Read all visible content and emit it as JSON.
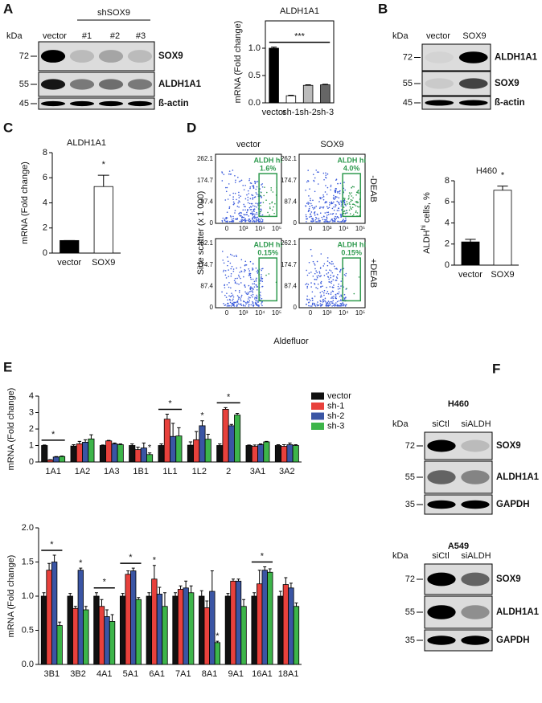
{
  "panel_labels": [
    "A",
    "B",
    "C",
    "D",
    "E",
    "F"
  ],
  "blots": [
    {
      "unit": "kDa",
      "markers": [
        72,
        55,
        45
      ],
      "group_label": "shSOX9",
      "lanes": [
        "vector",
        "#1",
        "#2",
        "#3"
      ],
      "proteins": [
        "SOX9",
        "ALDH1A1",
        "ß-actin"
      ]
    },
    {
      "unit": "kDa",
      "markers": [
        72,
        55,
        45
      ],
      "lanes": [
        "vector",
        "SOX9"
      ],
      "proteins": [
        "ALDH1A1",
        "SOX9",
        "ß-actin"
      ]
    },
    {
      "title": "H460",
      "unit": "kDa",
      "markers": [
        72,
        55,
        35
      ],
      "lanes": [
        "siCtl",
        "siALDH"
      ],
      "proteins": [
        "SOX9",
        "ALDH1A1",
        "GAPDH"
      ]
    },
    {
      "title": "A549",
      "unit": "kDa",
      "markers": [
        72,
        55,
        35
      ],
      "lanes": [
        "siCtl",
        "siALDH"
      ],
      "proteins": [
        "SOX9",
        "ALDH1A1",
        "GAPDH"
      ]
    }
  ],
  "flow": {
    "columns": [
      "vector",
      "SOX9"
    ],
    "rows": [
      "-DEAB",
      "+DEAB"
    ],
    "gate_label": "ALDH hi",
    "gates": [
      [
        "1.6%",
        "4.0%"
      ],
      [
        "0.15%",
        "0.15%"
      ]
    ],
    "ylabel": "Side scatter (x 1 000)",
    "xlabel": "Aldefluor",
    "yticks": [
      "262.1",
      "174.7",
      "87.4",
      "0"
    ],
    "xticks": [
      "0",
      "10³",
      "10⁴",
      "10⁵"
    ]
  },
  "chart_data": [
    {
      "type": "bar",
      "title": "ALDH1A1",
      "ylabel": "mRNA (Fold change)",
      "categories": [
        "vector",
        "sh-1",
        "sh-2",
        "sh-3"
      ],
      "values": [
        1.0,
        0.13,
        0.32,
        0.33
      ],
      "errors": [
        0.02,
        0.01,
        0.01,
        0.01
      ],
      "colors": [
        "#000000",
        "#ffffff",
        "#bbbbbb",
        "#666666"
      ],
      "edgecolor": "#000000",
      "ylim": [
        0,
        1.5
      ],
      "yticks": [
        {
          "value": 0,
          "label": "0.0"
        },
        {
          "value": 0.5,
          "label": "0.5"
        },
        {
          "value": 1,
          "label": "1.0"
        }
      ],
      "annotations": [
        {
          "text": "***",
          "bracket": true
        }
      ]
    },
    {
      "type": "bar",
      "title": "ALDH1A1",
      "ylabel": "mRNA (Fold change)",
      "categories": [
        "vector",
        "SOX9"
      ],
      "values": [
        1.0,
        5.3
      ],
      "errors": [
        0,
        0.9
      ],
      "colors": [
        "#000000",
        "#ffffff"
      ],
      "edgecolor": "#000000",
      "ylim": [
        0,
        8
      ],
      "yticks": [
        0,
        2,
        4,
        6,
        8
      ],
      "annotations": [
        {
          "text": "*",
          "category": "SOX9"
        }
      ]
    },
    {
      "type": "bar",
      "title": "H460",
      "ylabel": "ALDH",
      "ylabel_superscript": "hi",
      "ylabel_suffix": "cells, %",
      "categories": [
        "vector",
        "SOX9"
      ],
      "values": [
        2.2,
        7.1
      ],
      "errors": [
        0.25,
        0.4
      ],
      "colors": [
        "#000000",
        "#ffffff"
      ],
      "edgecolor": "#000000",
      "ylim": [
        0,
        8
      ],
      "yticks": [
        0,
        2,
        4,
        6,
        8
      ],
      "annotations": [
        {
          "text": "*",
          "category": "SOX9"
        }
      ]
    },
    {
      "type": "bar",
      "ylabel": "mRNA (Fold change)",
      "legend": "right",
      "edgecolor": "#000000",
      "categories": [
        "1A1",
        "1A2",
        "1A3",
        "1B1",
        "1L1",
        "1L2",
        "2",
        "3A1",
        "3A2"
      ],
      "series": [
        {
          "name": "vector",
          "color": "#111111",
          "values": [
            1.0,
            0.97,
            1.0,
            1.0,
            1.0,
            1.02,
            1.0,
            1.0,
            1.0
          ],
          "errors": [
            0.03,
            0.08,
            0.03,
            0.1,
            0.1,
            0.2,
            0.1,
            0.03,
            0.05
          ]
        },
        {
          "name": "sh-1",
          "color": "#e8413c",
          "values": [
            0.12,
            1.1,
            1.28,
            0.75,
            2.6,
            1.35,
            3.2,
            0.95,
            0.95
          ],
          "errors": [
            0.02,
            0.15,
            0.03,
            0.15,
            0.3,
            0.5,
            0.1,
            0.08,
            0.1
          ]
        },
        {
          "name": "sh-2",
          "color": "#3a55a4",
          "values": [
            0.3,
            1.2,
            1.1,
            0.85,
            1.55,
            2.2,
            2.2,
            1.05,
            1.05
          ],
          "errors": [
            0.03,
            0.15,
            0.05,
            0.3,
            0.8,
            0.3,
            0.08,
            0.05,
            0.1
          ]
        },
        {
          "name": "sh-3",
          "color": "#3db54a",
          "values": [
            0.33,
            1.4,
            1.05,
            0.45,
            1.58,
            1.38,
            2.85,
            1.22,
            1.0
          ],
          "errors": [
            0.03,
            0.25,
            0.05,
            0.1,
            0.5,
            0.3,
            0.1,
            0.03,
            0.05
          ]
        }
      ],
      "ylim": [
        0,
        4
      ],
      "yticks": [
        0,
        1,
        2,
        3,
        4
      ],
      "annotations": [
        {
          "text": "*",
          "category": "1A1",
          "bracket": true
        },
        {
          "text": "*",
          "category": "1B1",
          "series": "sh-3"
        },
        {
          "text": "*",
          "category": "1L1",
          "bracket": true
        },
        {
          "text": "*",
          "category": "1L2",
          "series": "sh-2"
        },
        {
          "text": "*",
          "category": "2",
          "bracket": true
        }
      ]
    },
    {
      "type": "bar",
      "ylabel": "mRNA (Fold change)",
      "edgecolor": "#000000",
      "categories": [
        "3B1",
        "3B2",
        "4A1",
        "5A1",
        "6A1",
        "7A1",
        "8A1",
        "9A1",
        "16A1",
        "18A1"
      ],
      "series": [
        {
          "name": "vector",
          "color": "#111111",
          "values": [
            1.0,
            1.0,
            1.0,
            1.0,
            1.0,
            1.0,
            1.0,
            1.0,
            1.0,
            1.0
          ],
          "errors": [
            0.05,
            0.04,
            0.05,
            0.04,
            0.05,
            0.05,
            0.08,
            0.04,
            0.05,
            0.07
          ]
        },
        {
          "name": "sh-1",
          "color": "#e8413c",
          "values": [
            1.38,
            0.82,
            0.85,
            1.32,
            1.25,
            1.1,
            0.83,
            1.22,
            1.18,
            1.17
          ],
          "errors": [
            0.1,
            0.03,
            0.1,
            0.05,
            0.2,
            0.05,
            0.1,
            0.03,
            0.2,
            0.1
          ]
        },
        {
          "name": "sh-2",
          "color": "#3a55a4",
          "values": [
            1.5,
            1.38,
            0.7,
            1.37,
            1.03,
            1.12,
            1.07,
            1.22,
            1.38,
            1.12
          ],
          "errors": [
            0.1,
            0.03,
            0.1,
            0.04,
            0.1,
            0.1,
            0.3,
            0.03,
            0.05,
            0.07
          ]
        },
        {
          "name": "sh-3",
          "color": "#3db54a",
          "values": [
            0.57,
            0.8,
            0.63,
            0.95,
            0.85,
            1.05,
            0.32,
            0.85,
            1.35,
            0.85
          ],
          "errors": [
            0.05,
            0.05,
            0.1,
            0.03,
            0.2,
            0.1,
            0.02,
            0.1,
            0.05,
            0.05
          ]
        }
      ],
      "ylim": [
        0,
        2
      ],
      "yticks": [
        {
          "value": 0,
          "label": "0.0"
        },
        {
          "value": 0.5,
          "label": "0.5"
        },
        {
          "value": 1,
          "label": "1.0"
        },
        {
          "value": 1.5,
          "label": "1.5"
        },
        {
          "value": 2,
          "label": "2.0"
        }
      ],
      "annotations": [
        {
          "text": "*",
          "category": "3B1",
          "bracket": true
        },
        {
          "text": "*",
          "category": "3B2",
          "series": "sh-2"
        },
        {
          "text": "*",
          "category": "4A1",
          "bracket": true
        },
        {
          "text": "*",
          "category": "5A1",
          "bracket": true
        },
        {
          "text": "*",
          "category": "6A1",
          "series": "sh-1"
        },
        {
          "text": "*",
          "category": "8A1",
          "series": "sh-3"
        },
        {
          "text": "*",
          "category": "16A1",
          "bracket": true
        }
      ]
    }
  ]
}
